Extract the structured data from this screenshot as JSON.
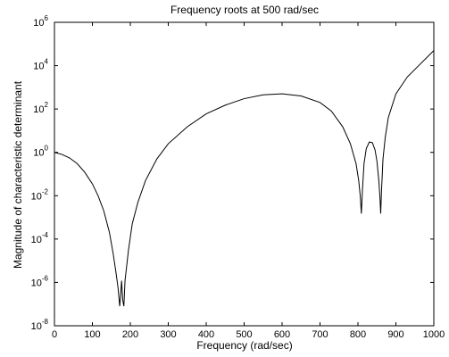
{
  "chart_data": {
    "type": "line",
    "title": "Frequency roots at 500 rad/sec",
    "xlabel": "Frequency (rad/sec)",
    "ylabel": "Magnitude of characteristic determinant",
    "xlim": [
      0,
      1000
    ],
    "ylim_log10": [
      -8,
      6
    ],
    "yscale": "log",
    "grid": false,
    "x_ticks": [
      0,
      100,
      200,
      300,
      400,
      500,
      600,
      700,
      800,
      900,
      1000
    ],
    "x_tick_labels": [
      "0",
      "100",
      "200",
      "300",
      "400",
      "500",
      "600",
      "700",
      "800",
      "900",
      "1000"
    ],
    "y_tick_exponents": [
      -8,
      -6,
      -4,
      -2,
      0,
      2,
      4,
      6
    ],
    "y_tick_base": "10",
    "line_color": "#000000",
    "series": [
      {
        "x": [
          0,
          20,
          40,
          60,
          80,
          100,
          115,
          130,
          145,
          155,
          162,
          168,
          172,
          174,
          177,
          180,
          183,
          186,
          190,
          195,
          205,
          220,
          240,
          270,
          300,
          350,
          400,
          450,
          500,
          550,
          600,
          650,
          700,
          730,
          760,
          780,
          795,
          802,
          806,
          809,
          812,
          816,
          822,
          830,
          838,
          845,
          850,
          855,
          858,
          860,
          862,
          866,
          872,
          880,
          900,
          930,
          960,
          1000
        ],
        "y": [
          1.0,
          0.8,
          0.55,
          0.3,
          0.12,
          0.035,
          0.01,
          0.002,
          0.0002,
          2e-05,
          3e-06,
          5e-07,
          8e-08,
          2e-07,
          1.2e-06,
          1.5e-07,
          8e-08,
          1.2e-06,
          5e-06,
          3e-05,
          0.0005,
          0.005,
          0.05,
          0.5,
          2.5,
          15,
          60,
          150,
          300,
          450,
          500,
          400,
          200,
          80,
          15,
          2.5,
          0.3,
          0.05,
          0.01,
          0.0015,
          0.02,
          0.3,
          1.5,
          3,
          2.8,
          1.3,
          0.4,
          0.05,
          0.008,
          0.0015,
          0.015,
          0.5,
          5,
          40,
          500,
          3000,
          10000,
          50000
        ]
      }
    ]
  }
}
